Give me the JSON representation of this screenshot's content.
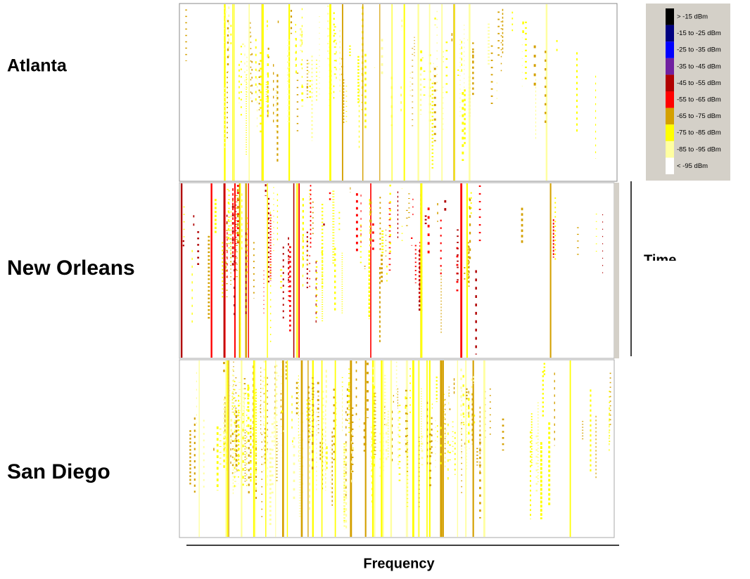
{
  "panels": [
    {
      "label": "Atlanta"
    },
    {
      "label": "New Orleans"
    },
    {
      "label": "San Diego"
    }
  ],
  "legend": {
    "entries": [
      {
        "label": "> -15 dBm",
        "color": "#000000"
      },
      {
        "label": "-15 to -25 dBm",
        "color": "#000080"
      },
      {
        "label": "-25 to -35 dBm",
        "color": "#0000ff"
      },
      {
        "label": "-35 to -45 dBm",
        "color": "#7020a0"
      },
      {
        "label": "-45 to -55 dBm",
        "color": "#b00000"
      },
      {
        "label": "-55 to -65 dBm",
        "color": "#ff0000"
      },
      {
        "label": "-65 to -75 dBm",
        "color": "#d4a000"
      },
      {
        "label": "-75 to -85 dBm",
        "color": "#ffff00"
      },
      {
        "label": "-85 to -95 dBm",
        "color": "#ffffa0"
      },
      {
        "label": "< -95 dBm",
        "color": "#ffffff"
      }
    ]
  },
  "axes": {
    "y_label": "Time",
    "x_label": "Frequency"
  }
}
